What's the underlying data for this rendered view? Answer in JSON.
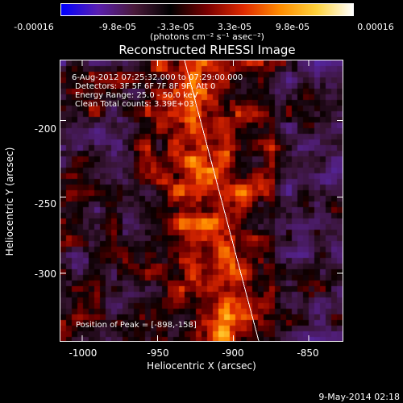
{
  "colorbar": {
    "ticks": [
      "-0.00016",
      "-9.8e-05",
      "-3.3e-05",
      "3.3e-05",
      "9.8e-05",
      "0.00016"
    ],
    "units": "(photons cm⁻² s⁻¹ asec⁻²)",
    "colors": [
      "#0000ff",
      "#5a1fb0",
      "#4a1a3a",
      "#000000",
      "#7a0000",
      "#e02a00",
      "#ff8c00",
      "#ffd23c",
      "#ffffff"
    ]
  },
  "title": "Reconstructed RHESSI Image",
  "info": {
    "time_range": "6-Aug-2012 07:25:32.000 to 07:29:00.000",
    "detectors": "Detectors: 3F 5F 6F 7F 8F 9F, Att 0",
    "energy_range": "Energy Range: 25.0 - 50.0 keV",
    "clean_counts": "Clean     Total counts: 3.39E+03",
    "peak": "Position of Peak = [-898,-158]"
  },
  "axes": {
    "xlabel": "Heliocentric X (arcsec)",
    "ylabel": "Heliocentric Y (arcsec)",
    "xticks": [
      "-1000",
      "-950",
      "-900",
      "-850"
    ],
    "yticks": [
      "-200",
      "-250",
      "-300"
    ],
    "x_tick_values": [
      -1000,
      -950,
      -900,
      -850
    ],
    "y_tick_values": [
      -200,
      -250,
      -300
    ],
    "xlim": [
      -1015,
      -827
    ],
    "ylim": [
      -345,
      -160
    ]
  },
  "footer": {
    "date": "9-May-2014 02:18"
  }
}
